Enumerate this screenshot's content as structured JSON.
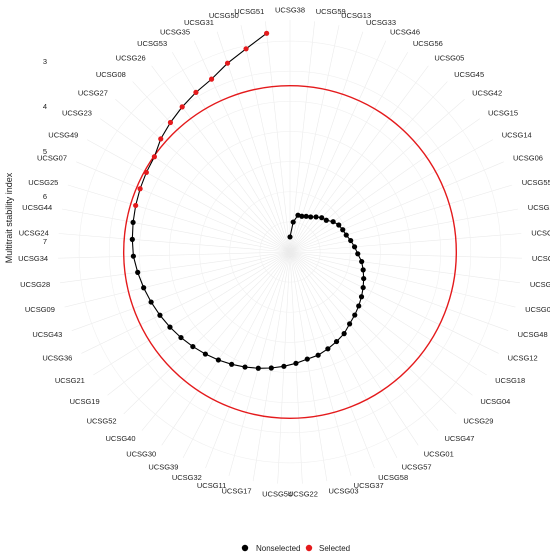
{
  "chart_data": {
    "type": "radar",
    "title": "",
    "ylabel": "Multitrait stability index",
    "y_ticks": [
      3,
      4,
      5,
      6,
      7
    ],
    "ylim": [
      0,
      7.7
    ],
    "threshold": 5.52,
    "threshold_color": "#e41a1c",
    "legend": {
      "placement": "bottom",
      "entries": [
        {
          "label": "Nonselected",
          "color": "#000000"
        },
        {
          "label": "Selected",
          "color": "#e41a1c"
        }
      ]
    },
    "categories": [
      "UCSG38",
      "UCSG59",
      "UCSG13",
      "UCSG33",
      "UCSG46",
      "UCSG56",
      "UCSG05",
      "UCSG45",
      "UCSG42",
      "UCSG15",
      "UCSG14",
      "UCSG06",
      "UCSG55",
      "UCSG20",
      "UCSG10",
      "UCSG41",
      "UCSG16",
      "UCSG02",
      "UCSG48",
      "UCSG12",
      "UCSG18",
      "UCSG04",
      "UCSG29",
      "UCSG47",
      "UCSG01",
      "UCSG57",
      "UCSG58",
      "UCSG37",
      "UCSG03",
      "UCSG22",
      "UCSG54",
      "UCSG17",
      "UCSG11",
      "UCSG32",
      "UCSG39",
      "UCSG30",
      "UCSG40",
      "UCSG52",
      "UCSG19",
      "UCSG21",
      "UCSG36",
      "UCSG43",
      "UCSG09",
      "UCSG28",
      "UCSG34",
      "UCSG24",
      "UCSG44",
      "UCSG25",
      "UCSG07",
      "UCSG49",
      "UCSG23",
      "UCSG27",
      "UCSG08",
      "UCSG26",
      "UCSG53",
      "UCSG35",
      "UCSG31",
      "UCSG50",
      "UCSG51"
    ],
    "values": [
      0.5,
      1.0,
      1.25,
      1.25,
      1.3,
      1.35,
      1.45,
      1.55,
      1.6,
      1.75,
      1.85,
      1.9,
      1.95,
      2.05,
      2.15,
      2.25,
      2.4,
      2.5,
      2.6,
      2.7,
      2.8,
      2.9,
      3.0,
      3.1,
      3.25,
      3.35,
      3.45,
      3.55,
      3.6,
      3.7,
      3.8,
      3.9,
      4.0,
      4.1,
      4.2,
      4.3,
      4.4,
      4.5,
      4.6,
      4.7,
      4.8,
      4.9,
      5.0,
      5.1,
      5.2,
      5.25,
      5.3,
      5.35,
      5.4,
      5.45,
      5.5,
      5.7,
      5.85,
      6.0,
      6.15,
      6.3,
      6.6,
      6.9,
      7.3
    ],
    "selected": [
      "UCSG25",
      "UCSG07",
      "UCSG49",
      "UCSG23",
      "UCSG27",
      "UCSG08",
      "UCSG26",
      "UCSG53",
      "UCSG35",
      "UCSG31",
      "UCSG50",
      "UCSG51"
    ]
  }
}
